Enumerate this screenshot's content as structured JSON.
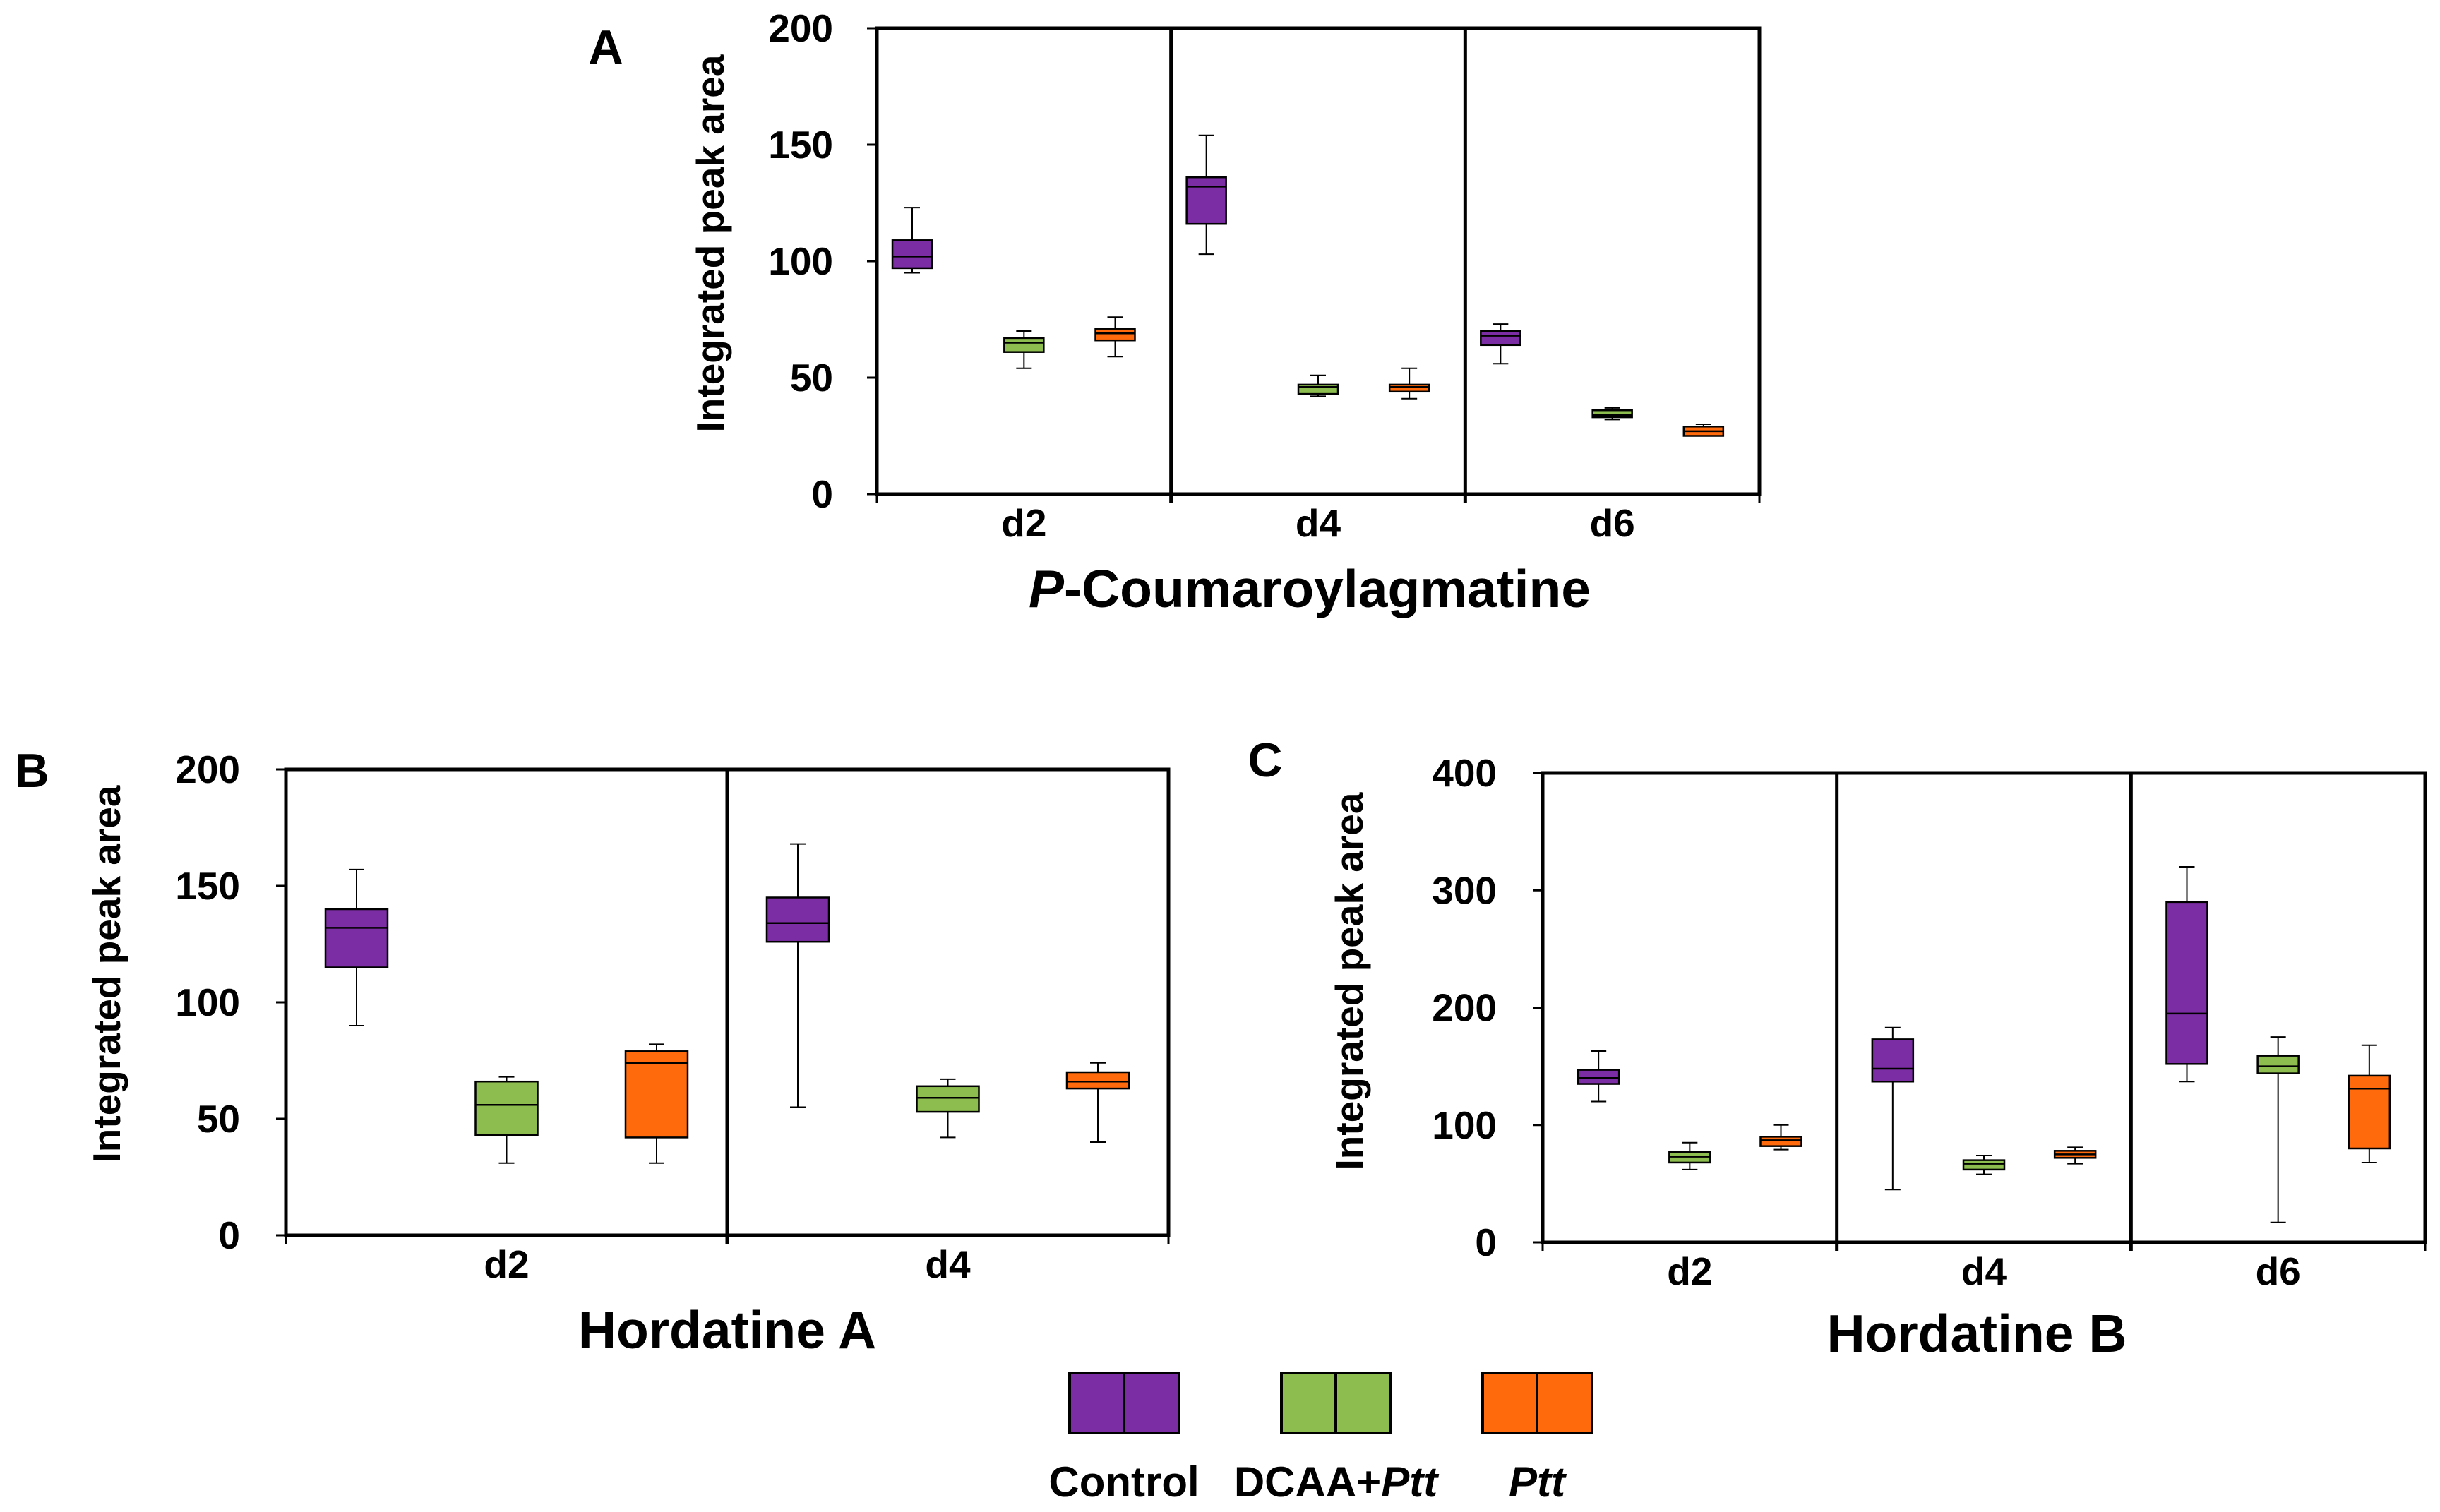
{
  "colors": {
    "control": "#7b2da3",
    "dcaa_ptt": "#8cbd4e",
    "ptt": "#ff6a0d",
    "axis": "#000000"
  },
  "legend": [
    {
      "key": "control",
      "label": "Control"
    },
    {
      "key": "dcaa_ptt",
      "label_plain": "DCAA+",
      "label_italic": "Ptt"
    },
    {
      "key": "ptt",
      "label_plain": "",
      "label_italic": "Ptt"
    }
  ],
  "chart_data": [
    {
      "panel": "A",
      "type": "box",
      "title_italic": "P",
      "title_rest": "-Coumaroylagmatine",
      "ylabel": "Integrated peak area",
      "ylim": [
        0,
        200
      ],
      "yticks": [
        "0",
        "50",
        "100",
        "150",
        "200"
      ],
      "categories": [
        "d2",
        "d4",
        "d6"
      ],
      "series": [
        {
          "name": "Control",
          "key": "control",
          "boxes": [
            {
              "min": 95,
              "q1": 97,
              "median": 102,
              "q3": 109,
              "max": 123
            },
            {
              "min": 103,
              "q1": 116,
              "median": 132,
              "q3": 136,
              "max": 154
            },
            {
              "min": 56,
              "q1": 64,
              "median": 68,
              "q3": 70,
              "max": 73
            }
          ]
        },
        {
          "name": "DCAA+Ptt",
          "key": "dcaa_ptt",
          "boxes": [
            {
              "min": 54,
              "q1": 61,
              "median": 65,
              "q3": 67,
              "max": 70
            },
            {
              "min": 42,
              "q1": 43,
              "median": 46,
              "q3": 47,
              "max": 51
            },
            {
              "min": 32,
              "q1": 33,
              "median": 34,
              "q3": 36,
              "max": 37
            }
          ]
        },
        {
          "name": "Ptt",
          "key": "ptt",
          "boxes": [
            {
              "min": 59,
              "q1": 66,
              "median": 69,
              "q3": 71,
              "max": 76
            },
            {
              "min": 41,
              "q1": 44,
              "median": 46,
              "q3": 47,
              "max": 54
            },
            {
              "min": 25,
              "q1": 25,
              "median": 27,
              "q3": 29,
              "max": 30
            }
          ]
        }
      ]
    },
    {
      "panel": "B",
      "type": "box",
      "title": "Hordatine A",
      "ylabel": "Integrated peak area",
      "ylim": [
        0,
        200
      ],
      "yticks": [
        "0",
        "50",
        "100",
        "150",
        "200"
      ],
      "categories": [
        "d2",
        "d4"
      ],
      "series": [
        {
          "name": "Control",
          "key": "control",
          "boxes": [
            {
              "min": 90,
              "q1": 115,
              "median": 132,
              "q3": 140,
              "max": 157
            },
            {
              "min": 55,
              "q1": 126,
              "median": 134,
              "q3": 145,
              "max": 168
            }
          ]
        },
        {
          "name": "DCAA+Ptt",
          "key": "dcaa_ptt",
          "boxes": [
            {
              "min": 31,
              "q1": 43,
              "median": 56,
              "q3": 66,
              "max": 68
            },
            {
              "min": 42,
              "q1": 53,
              "median": 59,
              "q3": 64,
              "max": 67
            }
          ]
        },
        {
          "name": "Ptt",
          "key": "ptt",
          "boxes": [
            {
              "min": 31,
              "q1": 42,
              "median": 74,
              "q3": 79,
              "max": 82
            },
            {
              "min": 40,
              "q1": 63,
              "median": 66,
              "q3": 70,
              "max": 74
            }
          ]
        }
      ]
    },
    {
      "panel": "C",
      "type": "box",
      "title": "Hordatine B",
      "ylabel": "Integrated peak area",
      "ylim": [
        0,
        400
      ],
      "yticks": [
        "0",
        "100",
        "200",
        "300",
        "400"
      ],
      "categories": [
        "d2",
        "d4",
        "d6"
      ],
      "series": [
        {
          "name": "Control",
          "key": "control",
          "boxes": [
            {
              "min": 120,
              "q1": 135,
              "median": 140,
              "q3": 147,
              "max": 163
            },
            {
              "min": 45,
              "q1": 137,
              "median": 148,
              "q3": 173,
              "max": 183
            },
            {
              "min": 137,
              "q1": 152,
              "median": 195,
              "q3": 290,
              "max": 320
            }
          ]
        },
        {
          "name": "DCAA+Ptt",
          "key": "dcaa_ptt",
          "boxes": [
            {
              "min": 62,
              "q1": 68,
              "median": 73,
              "q3": 77,
              "max": 85
            },
            {
              "min": 58,
              "q1": 62,
              "median": 67,
              "q3": 70,
              "max": 74
            },
            {
              "min": 17,
              "q1": 144,
              "median": 150,
              "q3": 159,
              "max": 175
            }
          ]
        },
        {
          "name": "Ptt",
          "key": "ptt",
          "boxes": [
            {
              "min": 79,
              "q1": 82,
              "median": 87,
              "q3": 90,
              "max": 100
            },
            {
              "min": 67,
              "q1": 72,
              "median": 75,
              "q3": 78,
              "max": 81
            },
            {
              "min": 68,
              "q1": 80,
              "median": 131,
              "q3": 142,
              "max": 168
            }
          ]
        }
      ]
    }
  ]
}
